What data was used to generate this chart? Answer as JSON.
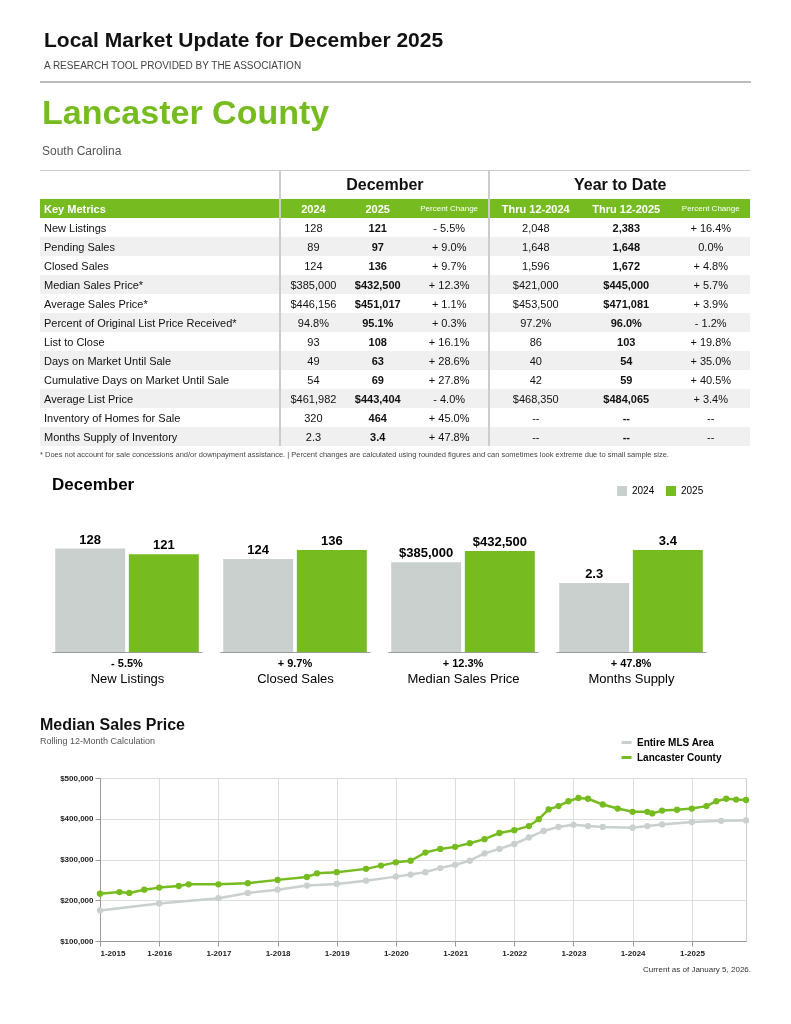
{
  "chart_data": [
    {
      "type": "other",
      "title": "Local Market Update for December 2025",
      "subtitle": "A RESEARCH TOOL PROVIDED BY THE ASSOCIATION",
      "annotations": [
        "Lancaster County",
        "South Carolina",
        "December",
        "Year to Date",
        "Key Metrics",
        "2024",
        "2025",
        "Percent Change",
        "Thru 12-2024",
        "Thru 12-2025",
        "Percent Change",
        "New Listings",
        "128",
        "121",
        "- 5.5%",
        "2,048",
        "2,383",
        "+ 16.4%",
        "Pending Sales",
        "89",
        "97",
        "+ 9.0%",
        "1,648",
        "1,648",
        "0.0%",
        "Closed Sales",
        "124",
        "136",
        "+ 9.7%",
        "1,596",
        "1,672",
        "+ 4.8%",
        "Median Sales Price*",
        "$385,000",
        "$432,500",
        "+ 12.3%",
        "$421,000",
        "$445,000",
        "+ 5.7%",
        "Average Sales Price*",
        "$446,156",
        "$451,017",
        "+ 1.1%",
        "$453,500",
        "$471,081",
        "+ 3.9%",
        "Percent of Original List Price Received*",
        "94.8%",
        "95.1%",
        "+ 0.3%",
        "97.2%",
        "96.0%",
        "- 1.2%",
        "List to Close",
        "93",
        "108",
        "+ 16.1%",
        "86",
        "103",
        "+ 19.8%",
        "Days on Market Until Sale",
        "49",
        "63",
        "+ 28.6%",
        "40",
        "54",
        "+ 35.0%",
        "Cumulative Days on Market Until Sale",
        "54",
        "69",
        "+ 27.8%",
        "42",
        "59",
        "+ 40.5%",
        "Average List Price",
        "$461,982",
        "$443,404",
        "- 4.0%",
        "$468,350",
        "$484,065",
        "+ 3.4%",
        "Inventory of Homes for Sale",
        "320",
        "464",
        "+ 45.0%",
        "--",
        "--",
        "--",
        "Months Supply of Inventory",
        "2.3",
        "3.4",
        "+ 47.8%",
        "--",
        "--",
        "--",
        "* Does not account for sale concessions and/or downpayment assistance.  |  Percent changes are calculated using rounded figures and can sometimes look extreme due to small sample size."
      ]
    },
    {
      "type": "bar",
      "title": "December",
      "categories": [
        null
      ],
      "xlabel": "New Listings",
      "annotations": [
        "- 5.5%"
      ],
      "tick_labels": false,
      "series": [
        {
          "color": "#c9d0ce",
          "values": [
            128
          ],
          "value_labels": [
            "128"
          ]
        },
        {
          "color": "#76bc21",
          "values": [
            121
          ],
          "value_labels": [
            "121"
          ]
        }
      ]
    },
    {
      "type": "bar",
      "categories": [
        null
      ],
      "xlabel": "Closed Sales",
      "annotations": [
        "+ 9.7%"
      ],
      "tick_labels": false,
      "series": [
        {
          "color": "#c9d0ce",
          "values": [
            124
          ],
          "value_labels": [
            "124"
          ]
        },
        {
          "color": "#76bc21",
          "values": [
            136
          ],
          "value_labels": [
            "136"
          ]
        }
      ]
    },
    {
      "type": "bar",
      "categories": [
        null
      ],
      "xlabel": "Median Sales Price",
      "annotations": [
        "+ 12.3%"
      ],
      "tick_labels": false,
      "series": [
        {
          "color": "#c9d0ce",
          "values": [
            385000
          ],
          "value_labels": [
            "$385,000"
          ]
        },
        {
          "color": "#76bc21",
          "values": [
            432500
          ],
          "value_labels": [
            "$432,500"
          ]
        }
      ]
    },
    {
      "type": "bar",
      "categories": [
        null
      ],
      "xlabel": "Months Supply",
      "annotations": [
        "+ 47.8%"
      ],
      "tick_labels": false,
      "legend": "top right",
      "series": [
        {
          "name": "2024",
          "color": "#c9d0ce",
          "values": [
            2.3
          ],
          "value_labels": [
            "2.3"
          ]
        },
        {
          "name": "2025",
          "color": "#76bc21",
          "values": [
            3.4
          ],
          "value_labels": [
            "3.4"
          ]
        }
      ]
    },
    {
      "type": "line",
      "title": "Median Sales Price",
      "subtitle": "Rolling 12-Month Calculation",
      "annotations": [
        "Current as of January 5, 2026."
      ],
      "grid": true,
      "legend": "top right",
      "marker": "circle",
      "xlim": [
        "2015-01",
        "2025-12"
      ],
      "xticks": [
        {
          "value": "2015-01",
          "label": "1-2015"
        },
        {
          "value": "2016-01",
          "label": "1-2016"
        },
        {
          "value": "2017-01",
          "label": "1-2017"
        },
        {
          "value": "2018-01",
          "label": "1-2018"
        },
        {
          "value": "2019-01",
          "label": "1-2019"
        },
        {
          "value": "2020-01",
          "label": "1-2020"
        },
        {
          "value": "2021-01",
          "label": "1-2021"
        },
        {
          "value": "2022-01",
          "label": "1-2022"
        },
        {
          "value": "2023-01",
          "label": "1-2023"
        },
        {
          "value": "2024-01",
          "label": "1-2024"
        },
        {
          "value": "2025-01",
          "label": "1-2025"
        }
      ],
      "ylim": [
        100000,
        500000
      ],
      "yticks": [
        {
          "value": 100000,
          "label": "$100,000"
        },
        {
          "value": 200000,
          "label": "$200,000"
        },
        {
          "value": 300000,
          "label": "$300,000"
        },
        {
          "value": 400000,
          "label": "$400,000"
        },
        {
          "value": 500000,
          "label": "$500,000"
        }
      ],
      "series": [
        {
          "name": "Entire MLS Area",
          "color": "#c9d0ce",
          "x": [
            "2015-01",
            "2016-01",
            "2017-01",
            "2017-07",
            "2018-01",
            "2018-07",
            "2019-01",
            "2019-07",
            "2020-01",
            "2020-04",
            "2020-07",
            "2020-10",
            "2021-01",
            "2021-04",
            "2021-07",
            "2021-10",
            "2022-01",
            "2022-04",
            "2022-07",
            "2022-10",
            "2023-01",
            "2023-04",
            "2023-07",
            "2024-01",
            "2024-04",
            "2024-07",
            "2025-01",
            "2025-07",
            "2025-12"
          ],
          "values": [
            175000,
            192000,
            205000,
            218000,
            226000,
            236000,
            240000,
            248000,
            258000,
            263000,
            269000,
            279000,
            287000,
            297000,
            315000,
            326000,
            338000,
            354000,
            370000,
            380000,
            385000,
            382000,
            380000,
            378000,
            382000,
            386000,
            392000,
            395000,
            396000
          ]
        },
        {
          "name": "Lancaster County",
          "color": "#76bc21",
          "x": [
            "2015-01",
            "2015-05",
            "2015-07",
            "2015-10",
            "2016-01",
            "2016-05",
            "2016-07",
            "2017-01",
            "2017-07",
            "2018-01",
            "2018-07",
            "2018-09",
            "2019-01",
            "2019-07",
            "2019-10",
            "2020-01",
            "2020-04",
            "2020-07",
            "2020-10",
            "2021-01",
            "2021-04",
            "2021-07",
            "2021-10",
            "2022-01",
            "2022-04",
            "2022-06",
            "2022-08",
            "2022-10",
            "2022-12",
            "2023-02",
            "2023-04",
            "2023-07",
            "2023-10",
            "2024-01",
            "2024-04",
            "2024-05",
            "2024-07",
            "2024-10",
            "2025-01",
            "2025-04",
            "2025-06",
            "2025-08",
            "2025-10",
            "2025-12"
          ],
          "values": [
            216000,
            220000,
            218000,
            226000,
            231000,
            235000,
            239000,
            239000,
            242000,
            250000,
            257000,
            266000,
            269000,
            277000,
            285000,
            293000,
            297000,
            317000,
            326000,
            331000,
            340000,
            350000,
            365000,
            372000,
            382000,
            399000,
            423000,
            431000,
            443000,
            451000,
            449000,
            435000,
            425000,
            417000,
            417000,
            413000,
            420000,
            422000,
            425000,
            431000,
            443000,
            449000,
            447000,
            446000
          ]
        }
      ]
    }
  ]
}
